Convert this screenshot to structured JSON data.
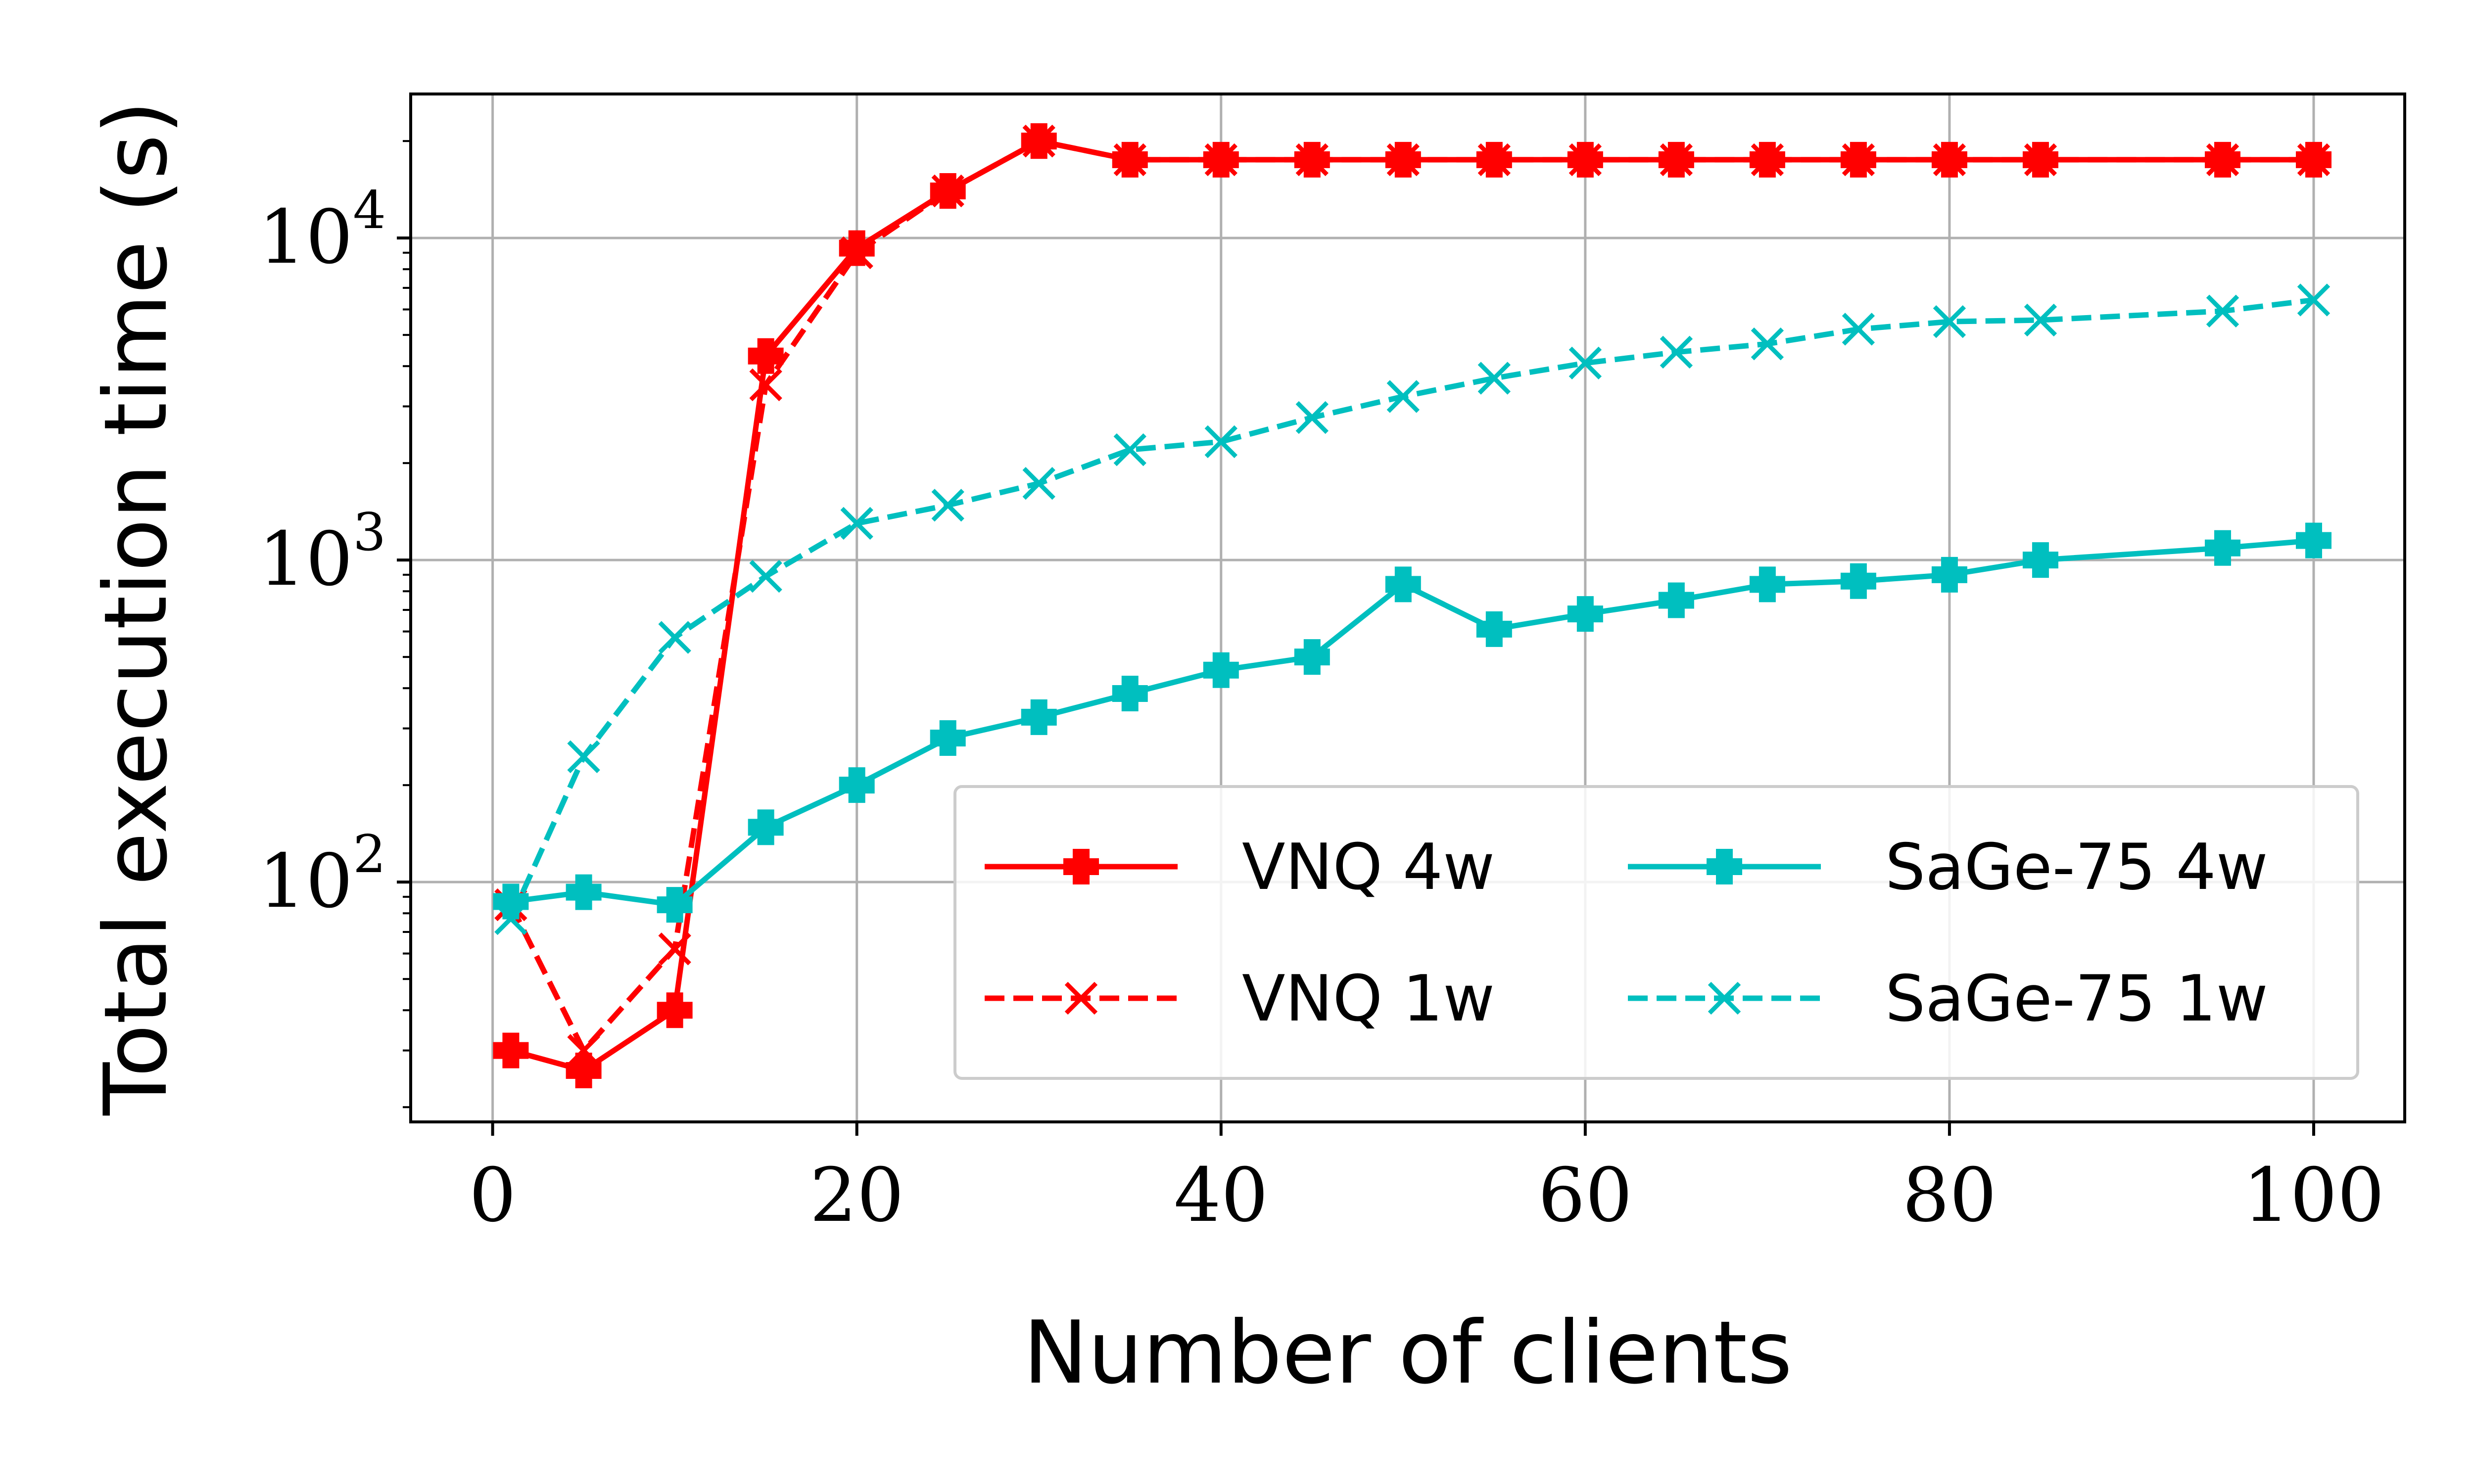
{
  "chart_data": {
    "type": "line",
    "xlabel": "Number of clients",
    "ylabel": "Total execution time (s)",
    "xlim": [
      -4.5,
      105
    ],
    "ylim": [
      18,
      28000
    ],
    "yscale": "log",
    "grid": true,
    "legend_position": "lower-right",
    "legend_columns": 2,
    "x_ticks": [
      {
        "value": 0,
        "label": "0"
      },
      {
        "value": 20,
        "label": "20"
      },
      {
        "value": 40,
        "label": "40"
      },
      {
        "value": 60,
        "label": "60"
      },
      {
        "value": 80,
        "label": "80"
      },
      {
        "value": 100,
        "label": "100"
      }
    ],
    "y_ticks": [
      {
        "value": 100,
        "base": "10",
        "exp": "2"
      },
      {
        "value": 1000,
        "base": "10",
        "exp": "3"
      },
      {
        "value": 10000,
        "base": "10",
        "exp": "4"
      }
    ],
    "series": [
      {
        "name": "VNQ 4w",
        "color": "#ff0000",
        "line_style": "solid",
        "marker": "plus-filled",
        "x": [
          1,
          5,
          10,
          15,
          20,
          25,
          30,
          35,
          40,
          45,
          50,
          55,
          60,
          65,
          70,
          75,
          80,
          85,
          95,
          100
        ],
        "y": [
          30,
          26,
          40,
          4300,
          9300,
          14000,
          20000,
          17500,
          17500,
          17500,
          17500,
          17500,
          17500,
          17500,
          17500,
          17500,
          17500,
          17500,
          17500,
          17500
        ]
      },
      {
        "name": "VNQ 1w",
        "color": "#ff0000",
        "line_style": "dashed",
        "marker": "x",
        "x": [
          1,
          5,
          10,
          15,
          20,
          25,
          30,
          35,
          40,
          45,
          50,
          55,
          60,
          65,
          70,
          75,
          80,
          85,
          95,
          100
        ],
        "y": [
          85,
          30,
          62,
          3500,
          9000,
          14000,
          20000,
          17500,
          17500,
          17500,
          17500,
          17500,
          17500,
          17500,
          17500,
          17500,
          17500,
          17500,
          17500,
          17500
        ]
      },
      {
        "name": "SaGe-75 4w",
        "color": "#00bfbf",
        "line_style": "solid",
        "marker": "plus-filled",
        "x": [
          1,
          5,
          10,
          15,
          20,
          25,
          30,
          35,
          40,
          45,
          50,
          55,
          60,
          65,
          70,
          75,
          80,
          85,
          95,
          100
        ],
        "y": [
          87,
          93,
          85,
          148,
          200,
          280,
          325,
          385,
          455,
          500,
          840,
          610,
          680,
          750,
          840,
          860,
          900,
          1000,
          1090,
          1150
        ]
      },
      {
        "name": "SaGe-75 1w",
        "color": "#00bfbf",
        "line_style": "dashed",
        "marker": "x",
        "x": [
          1,
          5,
          10,
          15,
          20,
          25,
          30,
          35,
          40,
          45,
          50,
          55,
          60,
          65,
          70,
          75,
          80,
          85,
          95,
          100
        ],
        "y": [
          77,
          245,
          575,
          890,
          1300,
          1480,
          1730,
          2200,
          2330,
          2770,
          3220,
          3670,
          4090,
          4420,
          4690,
          5210,
          5500,
          5560,
          5930,
          6420
        ]
      }
    ]
  }
}
